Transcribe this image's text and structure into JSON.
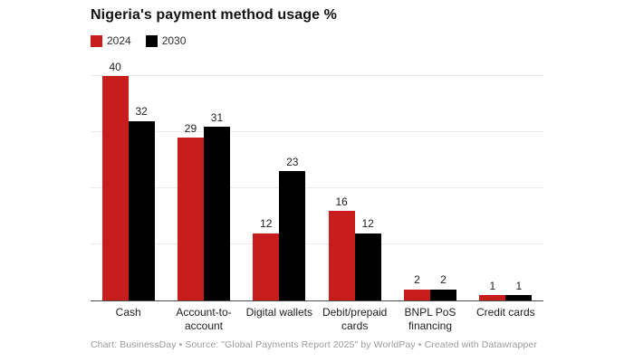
{
  "title": "Nigeria's payment method usage %",
  "footer": "Chart: BusinessDay • Source: \"Global Payments Report 2025\" by WorldPay • Created with Datawrapper",
  "legend": [
    {
      "label": "2024",
      "color": "#c71e1d"
    },
    {
      "label": "2030",
      "color": "#000000"
    }
  ],
  "colors": {
    "series_2024": "#c71e1d",
    "series_2030": "#000000",
    "gridline": "#e9e9e9",
    "axis_line": "#4d4d4d",
    "text": "#1d1d1d",
    "footer_text": "#9c9c9c"
  },
  "chart_data": {
    "type": "bar",
    "title": "Nigeria's payment method usage %",
    "categories": [
      "Cash",
      "Account-to-account",
      "Digital wallets",
      "Debit/prepaid cards",
      "BNPL PoS financing",
      "Credit cards"
    ],
    "series": [
      {
        "name": "2024",
        "color": "#c71e1d",
        "values": [
          40,
          29,
          12,
          16,
          2,
          1
        ]
      },
      {
        "name": "2030",
        "color": "#000000",
        "values": [
          32,
          31,
          23,
          12,
          2,
          1
        ]
      }
    ],
    "xlabel": "",
    "ylabel": "",
    "ylim": [
      0,
      43
    ],
    "gridlines": [
      10,
      20,
      30,
      40
    ],
    "grid": true,
    "y_axis_labels": false,
    "value_labels": true,
    "legend_position": "top-left"
  }
}
